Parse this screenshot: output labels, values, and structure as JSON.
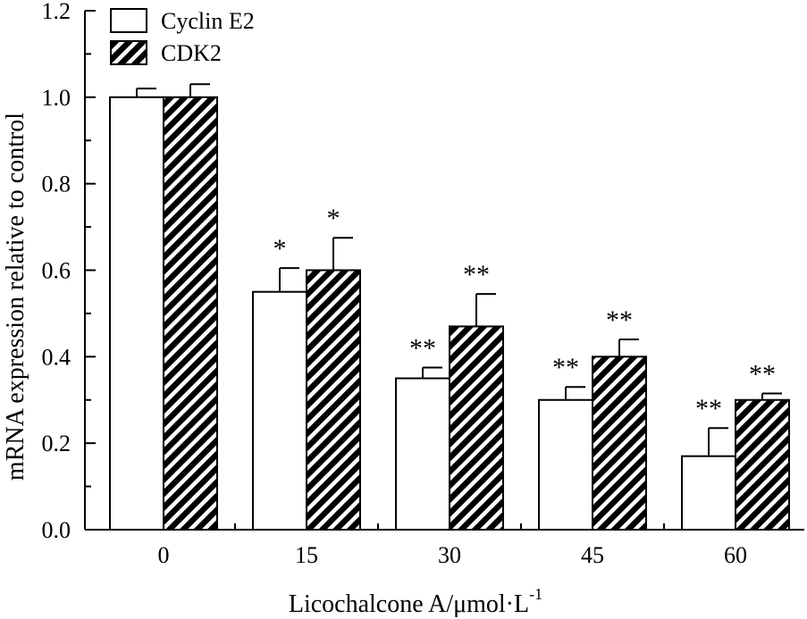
{
  "chart_data": {
    "type": "bar",
    "title": "",
    "xlabel": "Licochalcone A/μmol·L",
    "xlabel_superscript": "-1",
    "ylabel": "mRNA expression relative to control",
    "categories": [
      "0",
      "15",
      "30",
      "45",
      "60"
    ],
    "ylim": [
      0,
      1.2
    ],
    "yticks": [
      "0.0",
      "0.2",
      "0.4",
      "0.6",
      "0.8",
      "1.0",
      "1.2"
    ],
    "series": [
      {
        "name": "Cyclin E2",
        "pattern": "open",
        "values": [
          1.0,
          0.55,
          0.35,
          0.3,
          0.17
        ],
        "errors": [
          0.02,
          0.055,
          0.025,
          0.03,
          0.065
        ],
        "significance": [
          "",
          "*",
          "**",
          "**",
          "**"
        ]
      },
      {
        "name": "CDK2",
        "pattern": "hatched",
        "values": [
          1.0,
          0.6,
          0.47,
          0.4,
          0.3
        ],
        "errors": [
          0.03,
          0.075,
          0.075,
          0.04,
          0.015
        ],
        "significance": [
          "",
          "*",
          "**",
          "**",
          "**"
        ]
      }
    ],
    "legend_position": "top-left",
    "grid": false
  },
  "colors": {
    "stroke": "#000000",
    "fill_open": "#ffffff",
    "fill_hatch": "#000000"
  }
}
